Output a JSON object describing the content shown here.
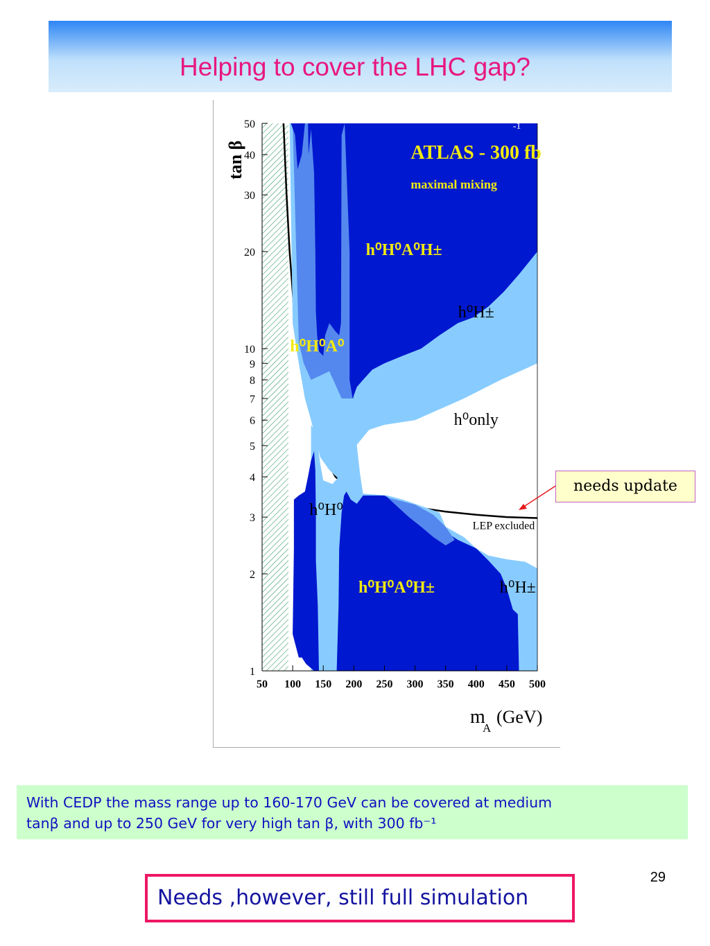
{
  "slide": {
    "title": "Helping to cover the LHC gap?",
    "note": "needs update",
    "summary_line1": "With CEDP the mass range up to 160-170 GeV can be covered at medium",
    "summary_line2": "tanβ and up to 250 GeV for very high tan β,  with 300 fb⁻¹",
    "conclusion": "Needs ,however, still full simulation",
    "page_number": "29"
  },
  "colors": {
    "title": "#e8177f",
    "dark_blue": "#0018cf",
    "mid_blue": "#5588ee",
    "light_blue": "#88ccff",
    "label_yellow": "#f2ea10",
    "summary_bg": "#ccffcc",
    "summary_text": "#1010c0",
    "conclusion_border": "#ee1763",
    "arrow": "#e8191e"
  },
  "chart_data": {
    "type": "area",
    "plot_title": "ATLAS - 300 fb",
    "plot_title_sup": "-1",
    "plot_subtitle": "maximal mixing",
    "xlabel": "m",
    "xlabel_sub": "A",
    "xlabel_unit": "(GeV)",
    "ylabel": "tan β",
    "xlim": [
      50,
      500
    ],
    "ylim": [
      1,
      50
    ],
    "yscale": "log",
    "xticks": [
      50,
      100,
      150,
      200,
      250,
      300,
      350,
      400,
      450,
      500
    ],
    "yticks": [
      1,
      2,
      3,
      4,
      5,
      6,
      7,
      8,
      9,
      10,
      20,
      30,
      40,
      50
    ],
    "region_labels": [
      {
        "text": "h⁰H⁰A⁰H±",
        "x": 282,
        "y": 19.5,
        "color": "yellow"
      },
      {
        "text": "h⁰H±",
        "x": 400,
        "y": 12.5,
        "color": "black"
      },
      {
        "text": "h⁰H⁰A⁰",
        "x": 140,
        "y": 9.8,
        "color": "yellow"
      },
      {
        "text": "h⁰only",
        "x": 400,
        "y": 5.8,
        "color": "black"
      },
      {
        "text": "h⁰H⁰",
        "x": 155,
        "y": 3.05,
        "color": "black"
      },
      {
        "text": "LEP excluded",
        "x": 445,
        "y": 2.75,
        "color": "black"
      },
      {
        "text": "h⁰H⁰A⁰H±",
        "x": 270,
        "y": 1.75,
        "color": "yellow"
      },
      {
        "text": "h⁰H±",
        "x": 468,
        "y": 1.75,
        "color": "black"
      }
    ],
    "lep_exclusion_curve": {
      "x": [
        85,
        90,
        95,
        100,
        105,
        110,
        125,
        130,
        140,
        150,
        170,
        200,
        250,
        300,
        350,
        400,
        450,
        500
      ],
      "y": [
        50,
        30,
        20,
        15,
        11,
        9.4,
        8.7,
        7.3,
        5.6,
        4.7,
        4.0,
        3.6,
        3.35,
        3.22,
        3.12,
        3.05,
        3.0,
        2.98
      ]
    },
    "theoretically_excluded_hatched": {
      "x_range": [
        50,
        93
      ],
      "y_range": [
        1,
        50
      ]
    }
  }
}
